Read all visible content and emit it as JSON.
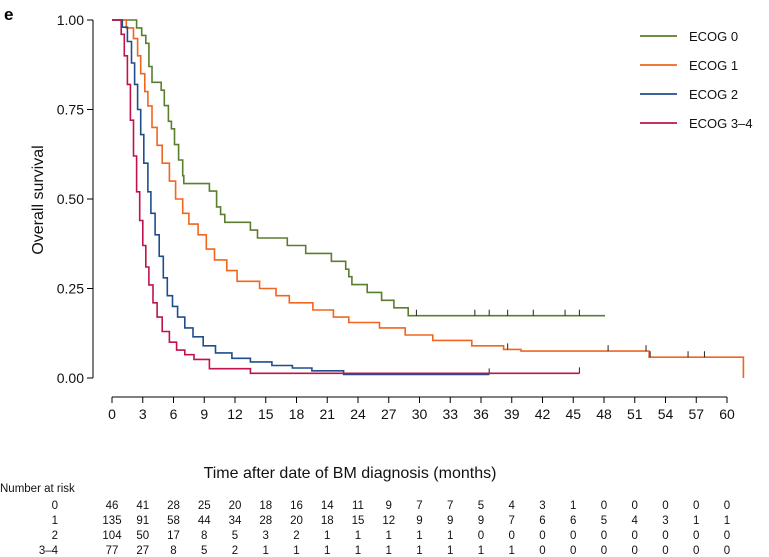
{
  "chart_data": {
    "type": "line",
    "subtype": "kaplan-meier",
    "panel_label": "e",
    "title": "",
    "xlabel": "Time after date of BM diagnosis (months)",
    "ylabel": "Overall survival",
    "xlim": [
      0,
      61
    ],
    "ylim": [
      0,
      1
    ],
    "x_ticks": [
      0,
      3,
      6,
      9,
      12,
      15,
      18,
      21,
      24,
      27,
      30,
      33,
      36,
      39,
      42,
      45,
      48,
      51,
      54,
      57,
      60
    ],
    "y_ticks": [
      0.0,
      0.25,
      0.5,
      0.75,
      1.0
    ],
    "y_tick_labels": [
      "0.00",
      "0.25",
      "0.50",
      "0.75",
      "1.00"
    ],
    "legend_position": "top-right",
    "series": [
      {
        "name": "ECOG 0",
        "color": "#5b7d2e",
        "steps": [
          [
            0,
            1.0
          ],
          [
            1.5,
            1.0
          ],
          [
            2.4,
            0.978
          ],
          [
            2.9,
            0.957
          ],
          [
            3.3,
            0.935
          ],
          [
            3.6,
            0.87
          ],
          [
            3.9,
            0.826
          ],
          [
            4.8,
            0.804
          ],
          [
            5.1,
            0.761
          ],
          [
            5.5,
            0.717
          ],
          [
            5.8,
            0.696
          ],
          [
            6.1,
            0.652
          ],
          [
            6.5,
            0.609
          ],
          [
            6.9,
            0.565
          ],
          [
            7.0,
            0.543
          ],
          [
            9.5,
            0.522
          ],
          [
            10.2,
            0.478
          ],
          [
            10.6,
            0.457
          ],
          [
            11.0,
            0.435
          ],
          [
            13.5,
            0.413
          ],
          [
            14.2,
            0.391
          ],
          [
            17.1,
            0.37
          ],
          [
            18.9,
            0.348
          ],
          [
            21.4,
            0.326
          ],
          [
            22.8,
            0.304
          ],
          [
            23.1,
            0.283
          ],
          [
            23.4,
            0.261
          ],
          [
            24.9,
            0.239
          ],
          [
            26.3,
            0.217
          ],
          [
            27.5,
            0.196
          ],
          [
            28.9,
            0.174
          ],
          [
            48.1,
            0.174
          ]
        ],
        "censors": [
          29.7,
          35.4,
          36.8,
          38.6,
          41.1,
          44.2,
          45.6
        ]
      },
      {
        "name": "ECOG 1",
        "color": "#f2651e",
        "steps": [
          [
            0,
            1.0
          ],
          [
            1.4,
            0.978
          ],
          [
            2.1,
            0.948
          ],
          [
            2.5,
            0.9
          ],
          [
            2.8,
            0.85
          ],
          [
            3.2,
            0.8
          ],
          [
            3.5,
            0.76
          ],
          [
            3.9,
            0.7
          ],
          [
            4.4,
            0.65
          ],
          [
            4.9,
            0.6
          ],
          [
            5.6,
            0.55
          ],
          [
            6.2,
            0.5
          ],
          [
            6.9,
            0.46
          ],
          [
            7.5,
            0.43
          ],
          [
            8.4,
            0.4
          ],
          [
            9.2,
            0.36
          ],
          [
            10.0,
            0.33
          ],
          [
            11.2,
            0.3
          ],
          [
            12.2,
            0.27
          ],
          [
            14.4,
            0.25
          ],
          [
            16.0,
            0.23
          ],
          [
            17.3,
            0.21
          ],
          [
            19.6,
            0.19
          ],
          [
            21.6,
            0.17
          ],
          [
            23.1,
            0.155
          ],
          [
            26.1,
            0.14
          ],
          [
            28.6,
            0.12
          ],
          [
            31.3,
            0.105
          ],
          [
            35.1,
            0.09
          ],
          [
            38.2,
            0.08
          ],
          [
            39.9,
            0.075
          ],
          [
            52.4,
            0.058
          ],
          [
            61.6,
            0.058
          ],
          [
            61.6,
            0.0
          ]
        ],
        "censors": [
          38.6,
          48.4,
          52.1,
          52.5,
          56.2,
          57.8
        ]
      },
      {
        "name": "ECOG 2",
        "color": "#1f4e8c",
        "steps": [
          [
            0,
            1.0
          ],
          [
            1.0,
            0.98
          ],
          [
            1.5,
            0.94
          ],
          [
            1.9,
            0.88
          ],
          [
            2.2,
            0.82
          ],
          [
            2.5,
            0.75
          ],
          [
            2.8,
            0.68
          ],
          [
            3.1,
            0.6
          ],
          [
            3.5,
            0.52
          ],
          [
            3.8,
            0.46
          ],
          [
            4.2,
            0.4
          ],
          [
            4.6,
            0.34
          ],
          [
            5.0,
            0.28
          ],
          [
            5.4,
            0.23
          ],
          [
            5.9,
            0.2
          ],
          [
            6.4,
            0.17
          ],
          [
            7.1,
            0.14
          ],
          [
            7.9,
            0.115
          ],
          [
            8.9,
            0.09
          ],
          [
            10.1,
            0.07
          ],
          [
            11.7,
            0.055
          ],
          [
            13.5,
            0.045
          ],
          [
            15.6,
            0.035
          ],
          [
            17.6,
            0.028
          ],
          [
            19.5,
            0.02
          ],
          [
            22.6,
            0.01
          ],
          [
            36.8,
            0.01
          ]
        ],
        "censors": [
          36.8
        ]
      },
      {
        "name": "ECOG 3–4",
        "color": "#c0134a",
        "steps": [
          [
            0,
            1.0
          ],
          [
            0.9,
            0.96
          ],
          [
            1.2,
            0.9
          ],
          [
            1.5,
            0.82
          ],
          [
            1.8,
            0.72
          ],
          [
            2.1,
            0.62
          ],
          [
            2.4,
            0.52
          ],
          [
            2.7,
            0.44
          ],
          [
            3.0,
            0.37
          ],
          [
            3.3,
            0.31
          ],
          [
            3.6,
            0.26
          ],
          [
            4.0,
            0.21
          ],
          [
            4.4,
            0.17
          ],
          [
            4.9,
            0.13
          ],
          [
            5.6,
            0.1
          ],
          [
            6.3,
            0.078
          ],
          [
            7.1,
            0.065
          ],
          [
            8.0,
            0.052
          ],
          [
            9.5,
            0.026
          ],
          [
            13.5,
            0.013
          ],
          [
            45.6,
            0.013
          ]
        ],
        "censors": [
          45.6
        ]
      }
    ],
    "risk_table": {
      "title": "Number at risk",
      "times": [
        0,
        3,
        6,
        9,
        12,
        15,
        18,
        21,
        24,
        27,
        30,
        33,
        36,
        39,
        42,
        45,
        48,
        51,
        54,
        57,
        60
      ],
      "rows": [
        {
          "label": "0",
          "values": [
            46,
            41,
            28,
            25,
            20,
            18,
            16,
            14,
            11,
            9,
            7,
            7,
            5,
            4,
            3,
            1,
            0,
            0,
            0,
            0,
            0
          ]
        },
        {
          "label": "1",
          "values": [
            135,
            91,
            58,
            44,
            34,
            28,
            20,
            18,
            15,
            12,
            9,
            9,
            9,
            7,
            6,
            6,
            5,
            4,
            3,
            1,
            1
          ]
        },
        {
          "label": "2",
          "values": [
            104,
            50,
            17,
            8,
            5,
            3,
            2,
            1,
            1,
            1,
            1,
            1,
            0,
            0,
            0,
            0,
            0,
            0,
            0,
            0,
            0
          ]
        },
        {
          "label": "3–4",
          "values": [
            77,
            27,
            8,
            5,
            2,
            1,
            1,
            1,
            1,
            1,
            1,
            1,
            1,
            1,
            0,
            0,
            0,
            0,
            0,
            0,
            0
          ]
        }
      ]
    }
  }
}
